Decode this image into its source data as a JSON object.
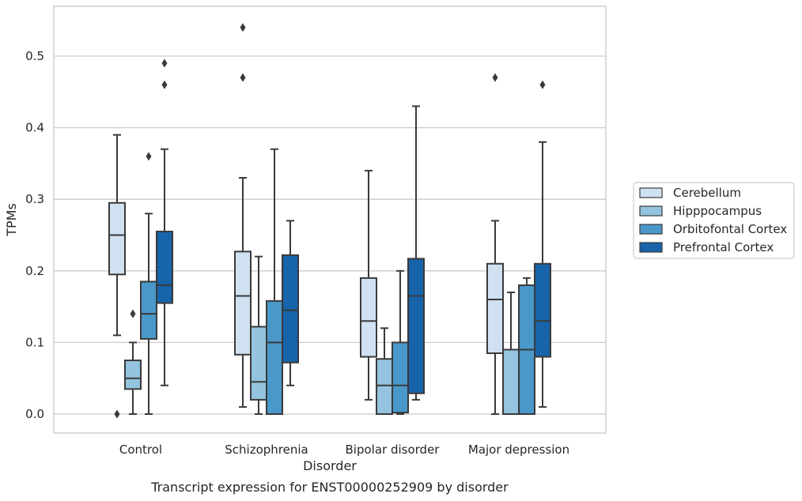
{
  "chart_data": {
    "type": "box",
    "caption": "Transcript expression for ENST00000252909 by disorder",
    "xlabel": "Disorder",
    "ylabel": "TPMs",
    "ylim": [
      -0.026,
      0.57
    ],
    "yticks": [
      0.0,
      0.1,
      0.2,
      0.3,
      0.4,
      0.5
    ],
    "ytick_labels": [
      "0.0",
      "0.1",
      "0.2",
      "0.3",
      "0.4",
      "0.5"
    ],
    "grid": true,
    "legend_position": "right",
    "categories": [
      "Control",
      "Schizophrenia",
      "Bipolar disorder",
      "Major depression"
    ],
    "series": [
      {
        "name": "Cerebellum",
        "color": "#d0e1f2",
        "boxes": [
          {
            "whisker_low": 0.11,
            "q1": 0.195,
            "median": 0.25,
            "q3": 0.295,
            "whisker_high": 0.39,
            "outliers": [
              0.0
            ]
          },
          {
            "whisker_low": 0.01,
            "q1": 0.083,
            "median": 0.165,
            "q3": 0.227,
            "whisker_high": 0.33,
            "outliers": [
              0.54,
              0.47
            ]
          },
          {
            "whisker_low": 0.02,
            "q1": 0.08,
            "median": 0.13,
            "q3": 0.19,
            "whisker_high": 0.34,
            "outliers": []
          },
          {
            "whisker_low": 0.0,
            "q1": 0.085,
            "median": 0.16,
            "q3": 0.21,
            "whisker_high": 0.27,
            "outliers": [
              0.47
            ]
          }
        ]
      },
      {
        "name": "Hipppocampus",
        "color": "#94c4df",
        "boxes": [
          {
            "whisker_low": 0.0,
            "q1": 0.035,
            "median": 0.05,
            "q3": 0.075,
            "whisker_high": 0.1,
            "outliers": [
              0.14
            ]
          },
          {
            "whisker_low": 0.0,
            "q1": 0.02,
            "median": 0.045,
            "q3": 0.122,
            "whisker_high": 0.22,
            "outliers": []
          },
          {
            "whisker_low": 0.0,
            "q1": 0.0,
            "median": 0.04,
            "q3": 0.077,
            "whisker_high": 0.12,
            "outliers": []
          },
          {
            "whisker_low": 0.0,
            "q1": 0.0,
            "median": 0.0,
            "q3": 0.09,
            "whisker_high": 0.17,
            "outliers": []
          }
        ]
      },
      {
        "name": "Orbitofontal Cortex",
        "color": "#4a98c9",
        "boxes": [
          {
            "whisker_low": 0.0,
            "q1": 0.105,
            "median": 0.14,
            "q3": 0.185,
            "whisker_high": 0.28,
            "outliers": [
              0.36
            ]
          },
          {
            "whisker_low": 0.0,
            "q1": 0.0,
            "median": 0.1,
            "q3": 0.158,
            "whisker_high": 0.37,
            "outliers": []
          },
          {
            "whisker_low": 0.0,
            "q1": 0.002,
            "median": 0.04,
            "q3": 0.1,
            "whisker_high": 0.2,
            "outliers": []
          },
          {
            "whisker_low": 0.0,
            "q1": 0.0,
            "median": 0.09,
            "q3": 0.18,
            "whisker_high": 0.19,
            "outliers": []
          }
        ]
      },
      {
        "name": "Prefrontal Cortex",
        "color": "#1764ab",
        "boxes": [
          {
            "whisker_low": 0.04,
            "q1": 0.155,
            "median": 0.18,
            "q3": 0.255,
            "whisker_high": 0.37,
            "outliers": [
              0.49,
              0.46
            ]
          },
          {
            "whisker_low": 0.04,
            "q1": 0.072,
            "median": 0.145,
            "q3": 0.222,
            "whisker_high": 0.27,
            "outliers": []
          },
          {
            "whisker_low": 0.02,
            "q1": 0.029,
            "median": 0.165,
            "q3": 0.217,
            "whisker_high": 0.43,
            "outliers": []
          },
          {
            "whisker_low": 0.01,
            "q1": 0.08,
            "median": 0.13,
            "q3": 0.21,
            "whisker_high": 0.38,
            "outliers": [
              0.46
            ]
          }
        ]
      }
    ]
  }
}
